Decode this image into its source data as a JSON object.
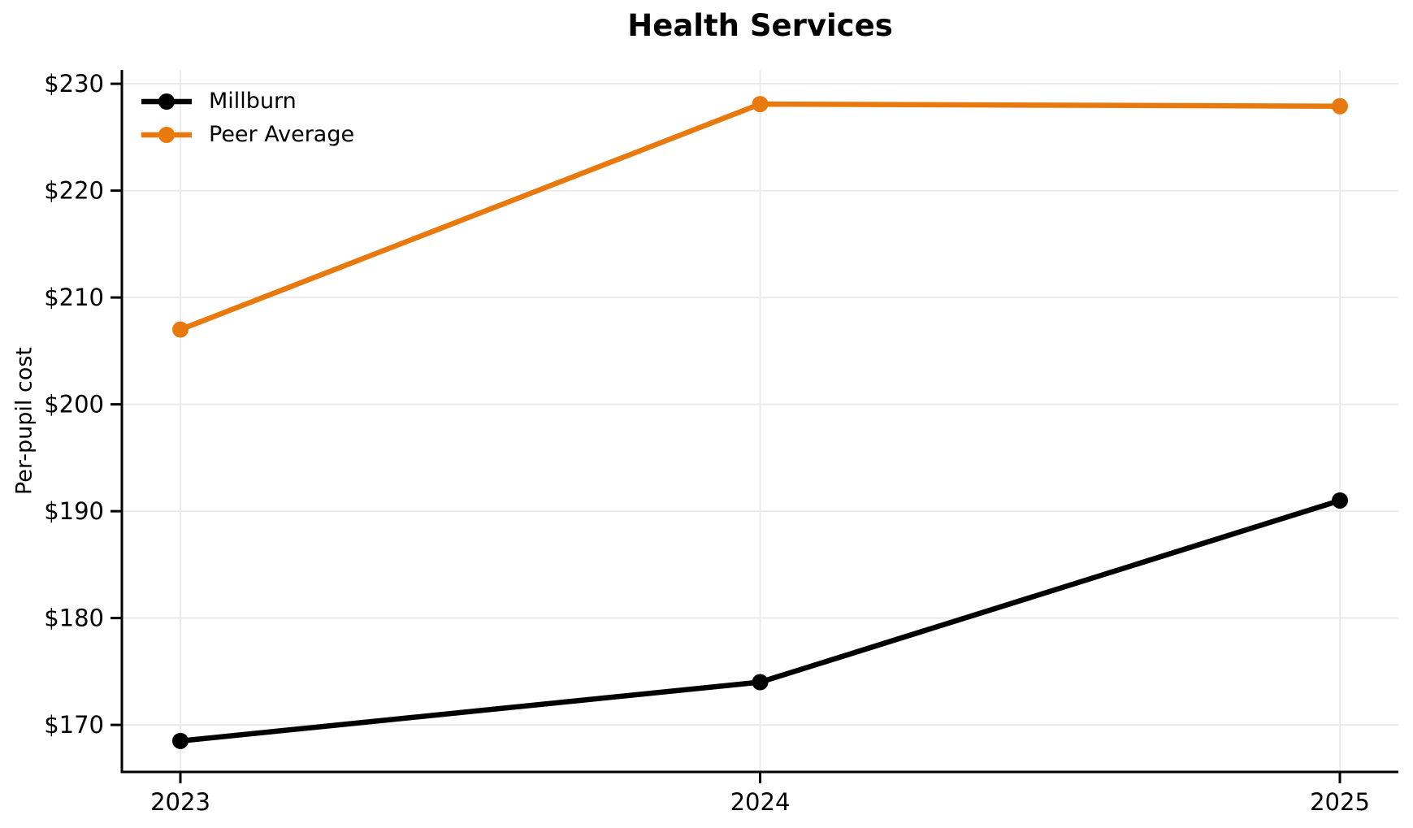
{
  "chart_data": {
    "type": "line",
    "title": "Health Services",
    "xlabel": "",
    "ylabel": "Per-pupil cost",
    "categories": [
      "2023",
      "2024",
      "2025"
    ],
    "series": [
      {
        "name": "Millburn",
        "color": "#000000",
        "values": [
          168.5,
          174.0,
          191.0
        ]
      },
      {
        "name": "Peer Average",
        "color": "#e8790f",
        "values": [
          207.0,
          228.1,
          227.9
        ]
      }
    ],
    "yticks": [
      170,
      180,
      190,
      200,
      210,
      220,
      230
    ],
    "ytick_labels": [
      "$170",
      "$180",
      "$190",
      "$200",
      "$210",
      "$220",
      "$230"
    ],
    "ylim": [
      165.6,
      231.3
    ],
    "grid": true,
    "grid_color": "#ebebeb",
    "axis_color": "#000000",
    "background_color": "#ffffff",
    "legend": {
      "position": "upper-left",
      "frame": false,
      "entries": [
        "Millburn",
        "Peer Average"
      ]
    }
  }
}
